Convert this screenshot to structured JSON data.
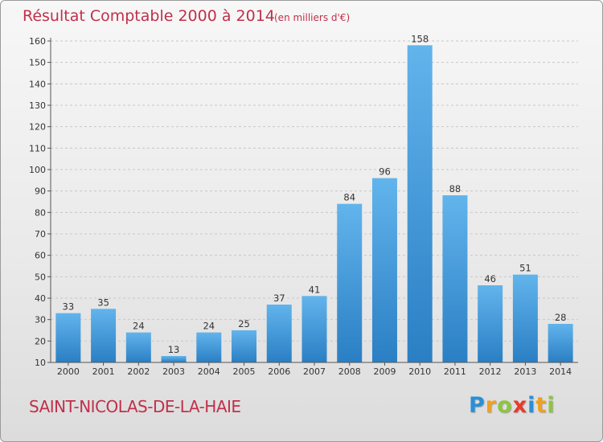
{
  "chart_data": {
    "type": "bar",
    "title": "Résultat Comptable 2000 à 2014",
    "unit": "(en milliers d'€)",
    "categories": [
      "2000",
      "2001",
      "2002",
      "2003",
      "2004",
      "2005",
      "2006",
      "2007",
      "2008",
      "2009",
      "2010",
      "2011",
      "2012",
      "2013",
      "2014"
    ],
    "values": [
      33,
      35,
      24,
      13,
      24,
      25,
      37,
      41,
      84,
      96,
      158,
      88,
      46,
      51,
      28
    ],
    "ylim": [
      10,
      160
    ],
    "yticks": [
      10,
      20,
      30,
      40,
      50,
      60,
      70,
      80,
      90,
      100,
      110,
      120,
      130,
      140,
      150,
      160
    ],
    "grid": true,
    "xlabel": "",
    "ylabel": ""
  },
  "footer": {
    "city": "SAINT-NICOLAS-DE-LA-HAIE",
    "logo_letters": [
      "P",
      "r",
      "o",
      "x",
      "i",
      "t",
      "i"
    ],
    "logo_colors": [
      "#2a8fd6",
      "#f0a020",
      "#8cc63f",
      "#e83a2a",
      "#2a8fd6",
      "#f0a020",
      "#8cc63f"
    ]
  },
  "colors": {
    "bar": "#3a92d6",
    "bar_light": "#62b4ec",
    "title": "#c0304a"
  }
}
